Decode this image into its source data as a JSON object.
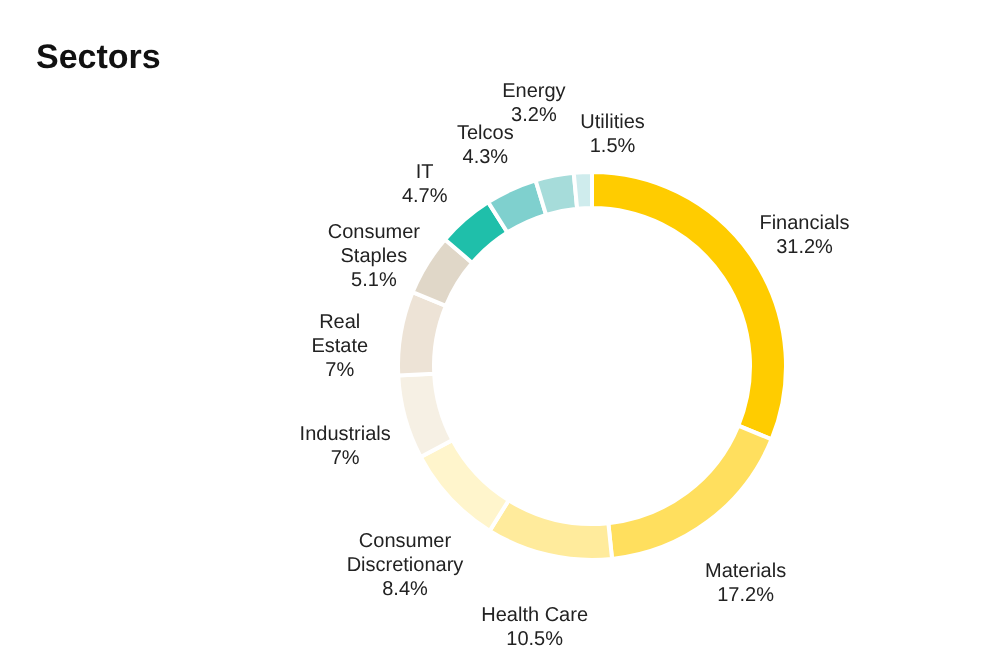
{
  "chart_data": {
    "type": "donut",
    "title": "Sectors",
    "categories": [
      "Financials",
      "Materials",
      "Health Care",
      "Consumer\nDiscretionary",
      "Industrials",
      "Real\nEstate",
      "Consumer\nStaples",
      "IT",
      "Telcos",
      "Energy",
      "Utilities"
    ],
    "values": [
      31.2,
      17.2,
      10.5,
      8.4,
      7,
      7,
      5.1,
      4.7,
      4.3,
      3.2,
      1.5
    ],
    "value_labels": [
      "31.2%",
      "17.2%",
      "10.5%",
      "8.4%",
      "7%",
      "7%",
      "5.1%",
      "4.7%",
      "4.3%",
      "3.2%",
      "1.5%"
    ],
    "colors": [
      "#ffcc00",
      "#ffdf5e",
      "#ffeb9c",
      "#fff5cc",
      "#f6f0e4",
      "#ede3d6",
      "#e0d7c8",
      "#1fbfaa",
      "#7fd0ce",
      "#a6dcda",
      "#cfeced"
    ],
    "legend": false
  }
}
